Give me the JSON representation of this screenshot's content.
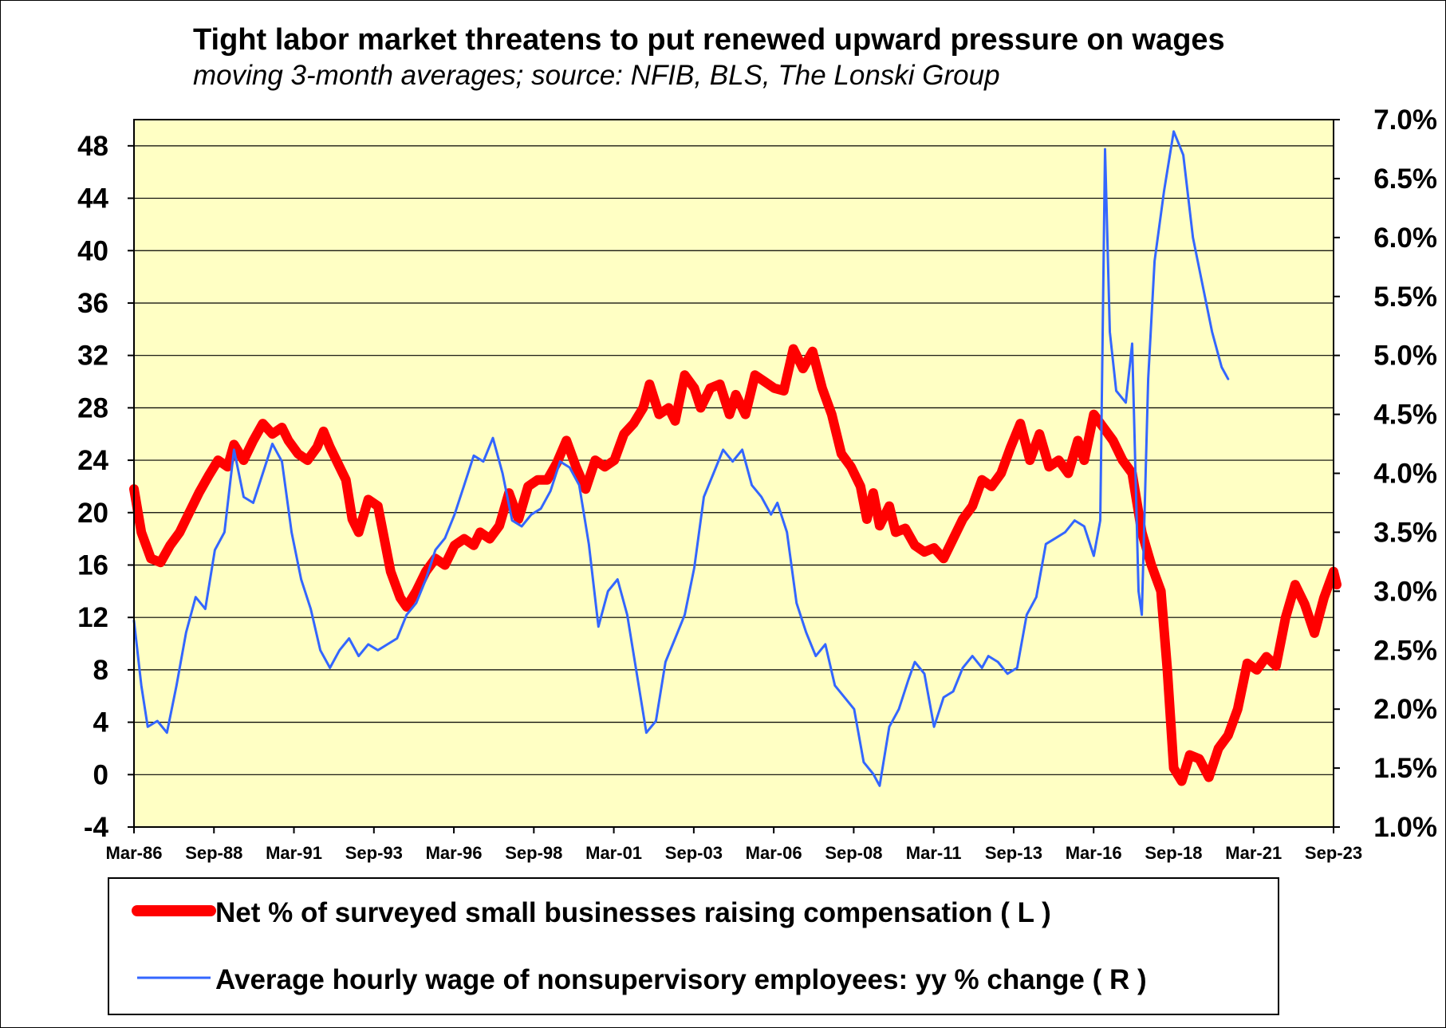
{
  "colors": {
    "plot_background": "#FFFFC4",
    "gridline": "#000000",
    "series_left": "#FF0000",
    "series_right": "#3366FF"
  },
  "chart_data": {
    "type": "line",
    "title": "Tight labor market threatens to put renewed upward pressure on wages",
    "subtitle": "moving 3-month averages; source: NFIB, BLS, The Lonski Group",
    "x_tick_labels": [
      "Mar-86",
      "Sep-88",
      "Mar-91",
      "Sep-93",
      "Mar-96",
      "Sep-98",
      "Mar-01",
      "Sep-03",
      "Mar-06",
      "Sep-08",
      "Mar-11",
      "Sep-13",
      "Mar-16",
      "Sep-18",
      "Mar-21",
      "Sep-23"
    ],
    "x_range": [
      1986.17,
      2023.7
    ],
    "y_left": {
      "ylim": [
        -4,
        50
      ],
      "ticks": [
        -4,
        0,
        4,
        8,
        12,
        16,
        20,
        24,
        28,
        32,
        36,
        40,
        44,
        48
      ]
    },
    "y_right": {
      "ylim": [
        1.0,
        7.0
      ],
      "ticks": [
        "1.0%",
        "1.5%",
        "2.0%",
        "2.5%",
        "3.0%",
        "3.5%",
        "4.0%",
        "4.5%",
        "5.0%",
        "5.5%",
        "6.0%",
        "6.5%",
        "7.0%"
      ],
      "tick_values": [
        1.0,
        1.5,
        2.0,
        2.5,
        3.0,
        3.5,
        4.0,
        4.5,
        5.0,
        5.5,
        6.0,
        6.5,
        7.0
      ]
    },
    "grid": true,
    "legend_placement": "bottom",
    "series": [
      {
        "name": "Net % of surveyed small businesses raising compensation ( L )",
        "axis": "left",
        "points": [
          [
            1986.17,
            21.8
          ],
          [
            1986.4,
            18.5
          ],
          [
            1986.7,
            16.5
          ],
          [
            1987.0,
            16.2
          ],
          [
            1987.3,
            17.5
          ],
          [
            1987.6,
            18.5
          ],
          [
            1987.9,
            20.0
          ],
          [
            1988.2,
            21.5
          ],
          [
            1988.5,
            22.8
          ],
          [
            1988.8,
            24.0
          ],
          [
            1989.1,
            23.5
          ],
          [
            1989.3,
            25.2
          ],
          [
            1989.6,
            24.0
          ],
          [
            1989.9,
            25.5
          ],
          [
            1990.2,
            26.8
          ],
          [
            1990.5,
            26.0
          ],
          [
            1990.8,
            26.5
          ],
          [
            1991.0,
            25.5
          ],
          [
            1991.3,
            24.5
          ],
          [
            1991.6,
            24.0
          ],
          [
            1991.9,
            25.0
          ],
          [
            1992.1,
            26.2
          ],
          [
            1992.3,
            25.0
          ],
          [
            1992.5,
            24.0
          ],
          [
            1992.8,
            22.5
          ],
          [
            1993.0,
            19.5
          ],
          [
            1993.2,
            18.5
          ],
          [
            1993.5,
            21.0
          ],
          [
            1993.8,
            20.5
          ],
          [
            1994.0,
            18.0
          ],
          [
            1994.2,
            15.5
          ],
          [
            1994.5,
            13.5
          ],
          [
            1994.7,
            12.8
          ],
          [
            1995.0,
            14.0
          ],
          [
            1995.3,
            15.5
          ],
          [
            1995.6,
            16.5
          ],
          [
            1995.9,
            16.0
          ],
          [
            1996.2,
            17.5
          ],
          [
            1996.5,
            18.0
          ],
          [
            1996.8,
            17.5
          ],
          [
            1997.0,
            18.5
          ],
          [
            1997.3,
            18.0
          ],
          [
            1997.6,
            19.0
          ],
          [
            1997.9,
            21.5
          ],
          [
            1998.2,
            19.5
          ],
          [
            1998.5,
            22.0
          ],
          [
            1998.8,
            22.5
          ],
          [
            1999.1,
            22.5
          ],
          [
            1999.4,
            23.8
          ],
          [
            1999.7,
            25.5
          ],
          [
            2000.0,
            23.5
          ],
          [
            2000.3,
            21.8
          ],
          [
            2000.6,
            24.0
          ],
          [
            2000.9,
            23.5
          ],
          [
            2001.2,
            24.0
          ],
          [
            2001.5,
            26.0
          ],
          [
            2001.8,
            26.8
          ],
          [
            2002.1,
            28.0
          ],
          [
            2002.3,
            29.8
          ],
          [
            2002.6,
            27.5
          ],
          [
            2002.9,
            28.0
          ],
          [
            2003.1,
            27.0
          ],
          [
            2003.4,
            30.5
          ],
          [
            2003.7,
            29.5
          ],
          [
            2003.9,
            28.0
          ],
          [
            2004.2,
            29.5
          ],
          [
            2004.5,
            29.8
          ],
          [
            2004.8,
            27.5
          ],
          [
            2005.0,
            29.0
          ],
          [
            2005.3,
            27.5
          ],
          [
            2005.6,
            30.5
          ],
          [
            2005.9,
            30.0
          ],
          [
            2006.2,
            29.5
          ],
          [
            2006.5,
            29.3
          ],
          [
            2006.8,
            32.5
          ],
          [
            2007.1,
            31.0
          ],
          [
            2007.4,
            32.3
          ],
          [
            2007.7,
            29.5
          ],
          [
            2008.0,
            27.5
          ],
          [
            2008.3,
            24.5
          ],
          [
            2008.6,
            23.5
          ],
          [
            2008.9,
            22.0
          ],
          [
            2009.1,
            19.5
          ],
          [
            2009.3,
            21.5
          ],
          [
            2009.5,
            19.0
          ],
          [
            2009.8,
            20.5
          ],
          [
            2010.0,
            18.5
          ],
          [
            2010.3,
            18.8
          ],
          [
            2010.6,
            17.5
          ],
          [
            2010.9,
            17.0
          ],
          [
            2011.2,
            17.3
          ],
          [
            2011.5,
            16.5
          ],
          [
            2011.8,
            18.0
          ],
          [
            2012.1,
            19.5
          ],
          [
            2012.4,
            20.5
          ],
          [
            2012.7,
            22.5
          ],
          [
            2013.0,
            22.0
          ],
          [
            2013.3,
            23.0
          ],
          [
            2013.6,
            25.0
          ],
          [
            2013.9,
            26.8
          ],
          [
            2014.2,
            24.0
          ],
          [
            2014.5,
            26.0
          ],
          [
            2014.8,
            23.5
          ],
          [
            2015.1,
            24.0
          ],
          [
            2015.4,
            23.0
          ],
          [
            2015.7,
            25.5
          ],
          [
            2015.9,
            24.0
          ],
          [
            2016.2,
            27.5
          ],
          [
            2016.5,
            26.5
          ],
          [
            2016.8,
            25.5
          ],
          [
            2017.1,
            24.0
          ],
          [
            2017.4,
            23.0
          ],
          [
            2017.7,
            18.5
          ],
          [
            2018.0,
            16.0
          ],
          [
            2018.3,
            14.0
          ],
          [
            2018.5,
            8.0
          ],
          [
            2018.7,
            0.5
          ],
          [
            2018.95,
            -0.5
          ],
          [
            2019.2,
            1.5
          ],
          [
            2019.5,
            1.2
          ],
          [
            2019.8,
            -0.2
          ],
          [
            2020.1,
            2.0
          ],
          [
            2020.4,
            3.0
          ],
          [
            2020.7,
            5.0
          ],
          [
            2021.0,
            8.5
          ],
          [
            2021.3,
            8.0
          ],
          [
            2021.6,
            9.0
          ],
          [
            2021.9,
            8.3
          ],
          [
            2022.2,
            12.0
          ],
          [
            2022.5,
            14.5
          ],
          [
            2022.8,
            13.0
          ],
          [
            2023.1,
            10.8
          ],
          [
            2023.4,
            13.5
          ],
          [
            2023.7,
            15.5
          ],
          [
            2023.8,
            14.5
          ]
        ]
      },
      {
        "name": "Average hourly wage of nonsupervisory employees: yy % change ( R )",
        "axis": "right",
        "points": [
          [
            1986.17,
            2.75
          ],
          [
            1986.4,
            2.2
          ],
          [
            1986.6,
            1.85
          ],
          [
            1986.9,
            1.9
          ],
          [
            1987.2,
            1.8
          ],
          [
            1987.5,
            2.2
          ],
          [
            1987.8,
            2.65
          ],
          [
            1988.1,
            2.95
          ],
          [
            1988.4,
            2.85
          ],
          [
            1988.7,
            3.35
          ],
          [
            1989.0,
            3.5
          ],
          [
            1989.3,
            4.2
          ],
          [
            1989.6,
            3.8
          ],
          [
            1989.9,
            3.75
          ],
          [
            1990.2,
            4.0
          ],
          [
            1990.5,
            4.25
          ],
          [
            1990.8,
            4.1
          ],
          [
            1991.1,
            3.5
          ],
          [
            1991.4,
            3.1
          ],
          [
            1991.7,
            2.85
          ],
          [
            1992.0,
            2.5
          ],
          [
            1992.3,
            2.35
          ],
          [
            1992.6,
            2.5
          ],
          [
            1992.9,
            2.6
          ],
          [
            1993.2,
            2.45
          ],
          [
            1993.5,
            2.55
          ],
          [
            1993.8,
            2.5
          ],
          [
            1994.1,
            2.55
          ],
          [
            1994.4,
            2.6
          ],
          [
            1994.7,
            2.8
          ],
          [
            1995.0,
            2.9
          ],
          [
            1995.3,
            3.1
          ],
          [
            1995.6,
            3.35
          ],
          [
            1995.9,
            3.45
          ],
          [
            1996.2,
            3.65
          ],
          [
            1996.5,
            3.9
          ],
          [
            1996.8,
            4.15
          ],
          [
            1997.1,
            4.1
          ],
          [
            1997.4,
            4.3
          ],
          [
            1997.7,
            4.0
          ],
          [
            1998.0,
            3.6
          ],
          [
            1998.3,
            3.55
          ],
          [
            1998.6,
            3.65
          ],
          [
            1998.9,
            3.7
          ],
          [
            1999.2,
            3.85
          ],
          [
            1999.5,
            4.1
          ],
          [
            1999.8,
            4.05
          ],
          [
            2000.1,
            3.9
          ],
          [
            2000.4,
            3.4
          ],
          [
            2000.7,
            2.7
          ],
          [
            2001.0,
            3.0
          ],
          [
            2001.3,
            3.1
          ],
          [
            2001.6,
            2.8
          ],
          [
            2001.9,
            2.3
          ],
          [
            2002.2,
            1.8
          ],
          [
            2002.5,
            1.9
          ],
          [
            2002.8,
            2.4
          ],
          [
            2003.1,
            2.6
          ],
          [
            2003.4,
            2.8
          ],
          [
            2003.7,
            3.2
          ],
          [
            2004.0,
            3.8
          ],
          [
            2004.3,
            4.0
          ],
          [
            2004.6,
            4.2
          ],
          [
            2004.9,
            4.1
          ],
          [
            2005.2,
            4.2
          ],
          [
            2005.5,
            3.9
          ],
          [
            2005.8,
            3.8
          ],
          [
            2006.1,
            3.65
          ],
          [
            2006.3,
            3.75
          ],
          [
            2006.6,
            3.5
          ],
          [
            2006.9,
            2.9
          ],
          [
            2007.2,
            2.65
          ],
          [
            2007.5,
            2.45
          ],
          [
            2007.8,
            2.55
          ],
          [
            2008.1,
            2.2
          ],
          [
            2008.4,
            2.1
          ],
          [
            2008.7,
            2.0
          ],
          [
            2009.0,
            1.55
          ],
          [
            2009.3,
            1.45
          ],
          [
            2009.5,
            1.35
          ],
          [
            2009.8,
            1.85
          ],
          [
            2010.1,
            2.0
          ],
          [
            2010.4,
            2.25
          ],
          [
            2010.6,
            2.4
          ],
          [
            2010.9,
            2.3
          ],
          [
            2011.2,
            1.85
          ],
          [
            2011.5,
            2.1
          ],
          [
            2011.8,
            2.15
          ],
          [
            2012.1,
            2.35
          ],
          [
            2012.4,
            2.45
          ],
          [
            2012.7,
            2.35
          ],
          [
            2012.9,
            2.45
          ],
          [
            2013.2,
            2.4
          ],
          [
            2013.5,
            2.3
          ],
          [
            2013.8,
            2.35
          ],
          [
            2014.1,
            2.8
          ],
          [
            2014.4,
            2.95
          ],
          [
            2014.7,
            3.4
          ],
          [
            2015.0,
            3.45
          ],
          [
            2015.3,
            3.5
          ],
          [
            2015.6,
            3.6
          ],
          [
            2015.9,
            3.55
          ],
          [
            2016.2,
            3.3
          ],
          [
            2016.4,
            3.6
          ],
          [
            2016.55,
            6.75
          ],
          [
            2016.7,
            5.2
          ],
          [
            2016.9,
            4.7
          ],
          [
            2017.2,
            4.6
          ],
          [
            2017.4,
            5.1
          ],
          [
            2017.6,
            3.0
          ],
          [
            2017.7,
            2.8
          ],
          [
            2017.9,
            4.8
          ],
          [
            2018.1,
            5.8
          ],
          [
            2018.4,
            6.4
          ],
          [
            2018.7,
            6.9
          ],
          [
            2019.0,
            6.7
          ],
          [
            2019.3,
            6.0
          ],
          [
            2019.6,
            5.6
          ],
          [
            2019.9,
            5.2
          ],
          [
            2020.2,
            4.9
          ],
          [
            2020.4,
            4.8
          ]
        ]
      }
    ]
  },
  "legend": {
    "entries": [
      {
        "label": "Net % of surveyed small businesses raising compensation ( L )",
        "series": 0
      },
      {
        "label": "Average hourly wage of nonsupervisory employees: yy % change ( R )",
        "series": 1
      }
    ]
  }
}
